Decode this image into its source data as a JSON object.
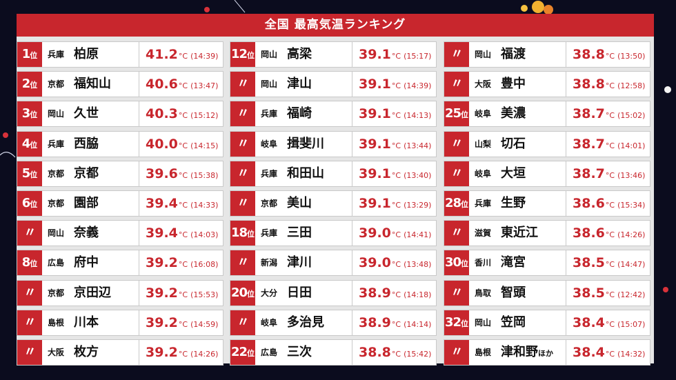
{
  "title": "全国 最高気温ランキング",
  "unit": "°C",
  "rank_suffix": "位",
  "same_rank_mark": "〃",
  "columns": [
    [
      {
        "rank": "1",
        "pref": "兵庫",
        "city": "柏原",
        "temp": "41.2",
        "time": "(14:39)"
      },
      {
        "rank": "2",
        "pref": "京都",
        "city": "福知山",
        "temp": "40.6",
        "time": "(13:47)"
      },
      {
        "rank": "3",
        "pref": "岡山",
        "city": "久世",
        "temp": "40.3",
        "time": "(15:12)"
      },
      {
        "rank": "4",
        "pref": "兵庫",
        "city": "西脇",
        "temp": "40.0",
        "time": "(14:15)"
      },
      {
        "rank": "5",
        "pref": "京都",
        "city": "京都",
        "temp": "39.6",
        "time": "(15:38)"
      },
      {
        "rank": "6",
        "pref": "京都",
        "city": "園部",
        "temp": "39.4",
        "time": "(14:33)"
      },
      {
        "rank": "",
        "pref": "岡山",
        "city": "奈義",
        "temp": "39.4",
        "time": "(14:03)"
      },
      {
        "rank": "8",
        "pref": "広島",
        "city": "府中",
        "temp": "39.2",
        "time": "(16:08)"
      },
      {
        "rank": "",
        "pref": "京都",
        "city": "京田辺",
        "temp": "39.2",
        "time": "(15:53)"
      },
      {
        "rank": "",
        "pref": "島根",
        "city": "川本",
        "temp": "39.2",
        "time": "(14:59)"
      },
      {
        "rank": "",
        "pref": "大阪",
        "city": "枚方",
        "temp": "39.2",
        "time": "(14:26)"
      }
    ],
    [
      {
        "rank": "12",
        "pref": "岡山",
        "city": "高梁",
        "temp": "39.1",
        "time": "(15:17)"
      },
      {
        "rank": "",
        "pref": "岡山",
        "city": "津山",
        "temp": "39.1",
        "time": "(14:39)"
      },
      {
        "rank": "",
        "pref": "兵庫",
        "city": "福崎",
        "temp": "39.1",
        "time": "(14:13)"
      },
      {
        "rank": "",
        "pref": "岐阜",
        "city": "揖斐川",
        "temp": "39.1",
        "time": "(13:44)"
      },
      {
        "rank": "",
        "pref": "兵庫",
        "city": "和田山",
        "temp": "39.1",
        "time": "(13:40)"
      },
      {
        "rank": "",
        "pref": "京都",
        "city": "美山",
        "temp": "39.1",
        "time": "(13:29)"
      },
      {
        "rank": "18",
        "pref": "兵庫",
        "city": "三田",
        "temp": "39.0",
        "time": "(14:41)"
      },
      {
        "rank": "",
        "pref": "新潟",
        "city": "津川",
        "temp": "39.0",
        "time": "(13:48)"
      },
      {
        "rank": "20",
        "pref": "大分",
        "city": "日田",
        "temp": "38.9",
        "time": "(14:18)"
      },
      {
        "rank": "",
        "pref": "岐阜",
        "city": "多治見",
        "temp": "38.9",
        "time": "(14:14)"
      },
      {
        "rank": "22",
        "pref": "広島",
        "city": "三次",
        "temp": "38.8",
        "time": "(15:42)"
      }
    ],
    [
      {
        "rank": "",
        "pref": "岡山",
        "city": "福渡",
        "temp": "38.8",
        "time": "(13:50)"
      },
      {
        "rank": "",
        "pref": "大阪",
        "city": "豊中",
        "temp": "38.8",
        "time": "(12:58)"
      },
      {
        "rank": "25",
        "pref": "岐阜",
        "city": "美濃",
        "temp": "38.7",
        "time": "(15:02)"
      },
      {
        "rank": "",
        "pref": "山梨",
        "city": "切石",
        "temp": "38.7",
        "time": "(14:01)"
      },
      {
        "rank": "",
        "pref": "岐阜",
        "city": "大垣",
        "temp": "38.7",
        "time": "(13:46)"
      },
      {
        "rank": "28",
        "pref": "兵庫",
        "city": "生野",
        "temp": "38.6",
        "time": "(15:34)"
      },
      {
        "rank": "",
        "pref": "滋賀",
        "city": "東近江",
        "temp": "38.6",
        "time": "(14:26)"
      },
      {
        "rank": "30",
        "pref": "香川",
        "city": "滝宮",
        "temp": "38.5",
        "time": "(14:47)"
      },
      {
        "rank": "",
        "pref": "鳥取",
        "city": "智頭",
        "temp": "38.5",
        "time": "(12:42)"
      },
      {
        "rank": "32",
        "pref": "岡山",
        "city": "笠岡",
        "temp": "38.4",
        "time": "(15:07)"
      },
      {
        "rank": "",
        "pref": "島根",
        "city": "津和野",
        "city_suffix": "ほか",
        "temp": "38.4",
        "time": "(14:32)"
      }
    ]
  ]
}
